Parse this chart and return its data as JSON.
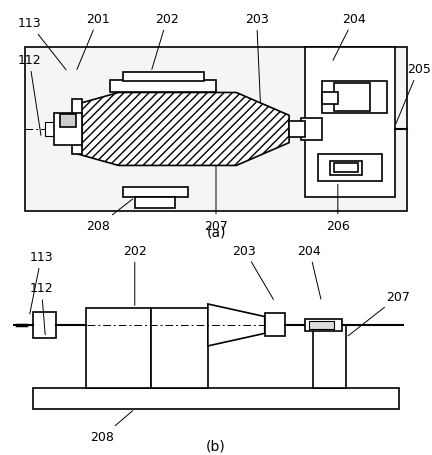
{
  "bg": "#ffffff",
  "lc": "#000000",
  "font_size": 9,
  "fig_label_font": 10,
  "lw": 1.2,
  "thin_lw": 0.8,
  "thick_lw": 2.0
}
